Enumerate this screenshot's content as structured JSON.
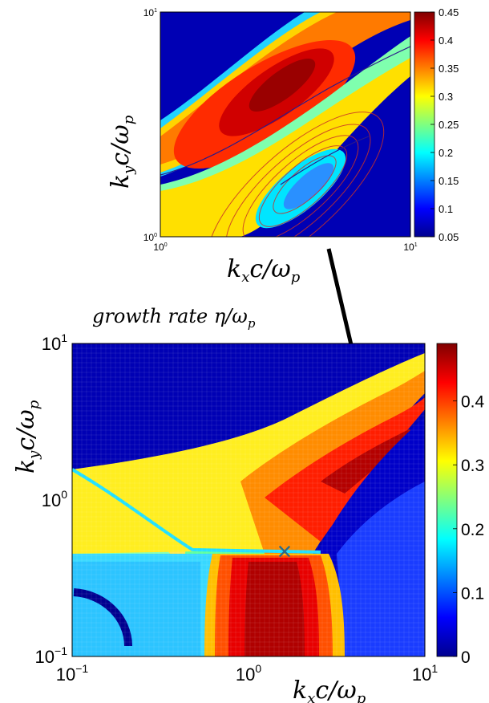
{
  "chart_data": [
    {
      "type": "heatmap",
      "panel": "top-inset",
      "xlabel_main": "k",
      "xlabel_sub": "x",
      "xlabel_rest": "c/ω",
      "xlabel_sub2": "p",
      "ylabel_main": "k",
      "ylabel_sub": "y",
      "ylabel_rest": "c/ω",
      "ylabel_sub2": "p",
      "x_scale": "log",
      "y_scale": "log",
      "xlim": [
        1,
        10
      ],
      "ylim": [
        1,
        10
      ],
      "x_ticks": [
        {
          "base": "10",
          "exp": "0"
        },
        {
          "base": "10",
          "exp": "1"
        }
      ],
      "y_ticks": [
        {
          "base": "10",
          "exp": "0"
        },
        {
          "base": "10",
          "exp": "1"
        }
      ],
      "colorbar": {
        "min": 0.05,
        "max": 0.45,
        "ticks": [
          "0.45",
          "0.4",
          "0.35",
          "0.3",
          "0.25",
          "0.2",
          "0.15",
          "0.1",
          "0.05"
        ]
      },
      "overlay": "contour lines"
    },
    {
      "type": "heatmap",
      "panel": "main",
      "title": "growth rate η/ω",
      "title_sub": "p",
      "xlabel_main": "k",
      "xlabel_sub": "x",
      "xlabel_rest": "c/ω",
      "xlabel_sub2": "p",
      "ylabel_main": "k",
      "ylabel_sub": "y",
      "ylabel_rest": "c/ω",
      "ylabel_sub2": "p",
      "x_scale": "log",
      "y_scale": "log",
      "xlim": [
        0.1,
        10
      ],
      "ylim": [
        0.1,
        10
      ],
      "x_ticks": [
        {
          "base": "10",
          "exp": "−1"
        },
        {
          "base": "10",
          "exp": "0"
        },
        {
          "base": "10",
          "exp": "1"
        }
      ],
      "y_ticks": [
        {
          "base": "10",
          "exp": "−1"
        },
        {
          "base": "10",
          "exp": "0"
        },
        {
          "base": "10",
          "exp": "1"
        }
      ],
      "colorbar": {
        "min": 0,
        "max": 0.49,
        "ticks": [
          "0.4",
          "0.3",
          "0.2",
          "0.1",
          "0"
        ]
      },
      "marker": {
        "symbol": "×",
        "x": 1.6,
        "y": 0.47
      },
      "arrow": "points from top inset to region near kx c/ωp ≈ 5, ky c/ωp ≈ 2"
    }
  ]
}
